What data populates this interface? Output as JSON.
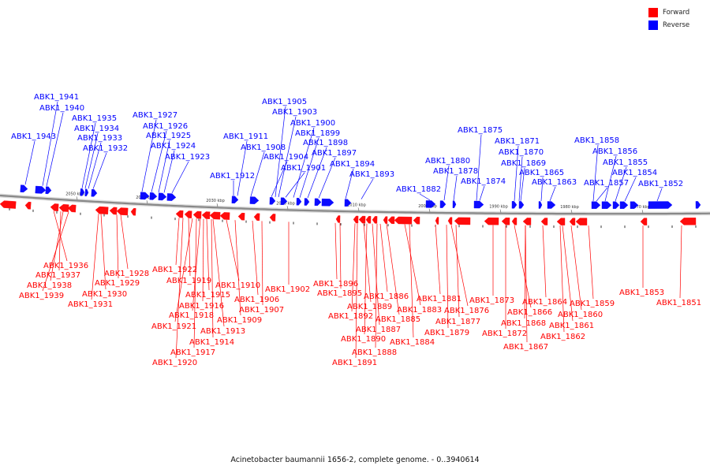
{
  "colors": {
    "forward": "#ff0000",
    "reverse": "#0000ff",
    "backbone": "#888888"
  },
  "legend": [
    {
      "label": "Forward",
      "color": "#ff0000"
    },
    {
      "label": "Reverse",
      "color": "#0000ff"
    }
  ],
  "caption": "Acinetobacter baumannii 1656-2, complete genome. - 0..3940614",
  "scale_labels": [
    "2050 kbp",
    "2040 kbp",
    "2030 kbp",
    "2020 kbp",
    "2010 kbp",
    "2000 kbp",
    "1990 kbp",
    "1980 kbp",
    "1970 kbp"
  ],
  "reverse_genes": [
    "ABK1_1941",
    "ABK1_1940",
    "ABK1_1935",
    "ABK1_1934",
    "ABK1_1933",
    "ABK1_1943",
    "ABK1_1932",
    "ABK1_1927",
    "ABK1_1926",
    "ABK1_1925",
    "ABK1_1924",
    "ABK1_1923",
    "ABK1_1912",
    "ABK1_1911",
    "ABK1_1908",
    "ABK1_1905",
    "ABK1_1903",
    "ABK1_1900",
    "ABK1_1899",
    "ABK1_1898",
    "ABK1_1904",
    "ABK1_1901",
    "ABK1_1897",
    "ABK1_1894",
    "ABK1_1893",
    "ABK1_1882",
    "ABK1_1880",
    "ABK1_1878",
    "ABK1_1875",
    "ABK1_1874",
    "ABK1_1871",
    "ABK1_1870",
    "ABK1_1869",
    "ABK1_1865",
    "ABK1_1863",
    "ABK1_1858",
    "ABK1_1856",
    "ABK1_1855",
    "ABK1_1857",
    "ABK1_1854",
    "ABK1_1852"
  ],
  "forward_genes": [
    "ABK1_1936",
    "ABK1_1937",
    "ABK1_1938",
    "ABK1_1939",
    "ABK1_1930",
    "ABK1_1931",
    "ABK1_1928",
    "ABK1_1929",
    "ABK1_1922",
    "ABK1_1919",
    "ABK1_1915",
    "ABK1_1916",
    "ABK1_1918",
    "ABK1_1921",
    "ABK1_1914",
    "ABK1_1917",
    "ABK1_1920",
    "ABK1_1913",
    "ABK1_1910",
    "ABK1_1909",
    "ABK1_1906",
    "ABK1_1907",
    "ABK1_1902",
    "ABK1_1896",
    "ABK1_1895",
    "ABK1_1892",
    "ABK1_1889",
    "ABK1_1886",
    "ABK1_1887",
    "ABK1_1885",
    "ABK1_1890",
    "ABK1_1888",
    "ABK1_1891",
    "ABK1_1883",
    "ABK1_1884",
    "ABK1_1881",
    "ABK1_1876",
    "ABK1_1877",
    "ABK1_1879",
    "ABK1_1873",
    "ABK1_1872",
    "ABK1_1866",
    "ABK1_1868",
    "ABK1_1867",
    "ABK1_1864",
    "ABK1_1861",
    "ABK1_1860",
    "ABK1_1862",
    "ABK1_1859",
    "ABK1_1853",
    "ABK1_1851"
  ]
}
